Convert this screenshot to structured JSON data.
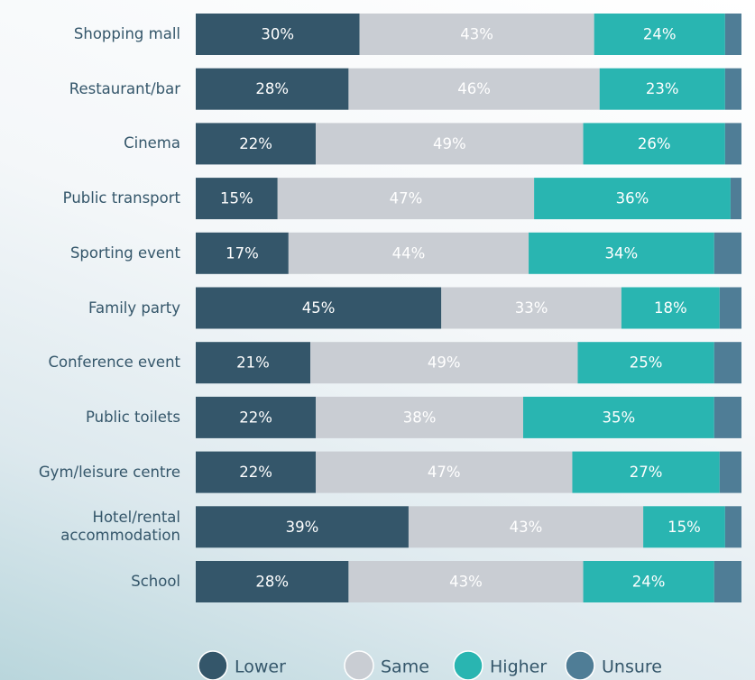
{
  "chart_data": {
    "type": "stacked-bar-horizontal",
    "categories": [
      "Shopping mall",
      "Restaurant/bar",
      "Cinema",
      "Public transport",
      "Sporting event",
      "Family party",
      "Conference event",
      "Public toilets",
      "Gym/leisure centre",
      "Hotel/rental accommodation",
      "School"
    ],
    "xlim": [
      0,
      100
    ],
    "legend": "bottom",
    "series": [
      {
        "name": "Lower",
        "color": "#34566a",
        "label_color": "#ffffff",
        "values": [
          30,
          28,
          22,
          15,
          17,
          45,
          21,
          22,
          22,
          39,
          28
        ],
        "value_labels": [
          "30%",
          "28%",
          "22%",
          "15%",
          "17%",
          "45%",
          "21%",
          "22%",
          "22%",
          "39%",
          "28%"
        ]
      },
      {
        "name": "Same",
        "color": "#c9cdd3",
        "label_color": "#ffffff",
        "values": [
          43,
          46,
          49,
          47,
          44,
          33,
          49,
          38,
          47,
          43,
          43
        ],
        "value_labels": [
          "43%",
          "46%",
          "49%",
          "47%",
          "44%",
          "33%",
          "49%",
          "38%",
          "47%",
          "43%",
          "43%"
        ]
      },
      {
        "name": "Higher",
        "color": "#29b5b1",
        "label_color": "#ffffff",
        "values": [
          24,
          23,
          26,
          36,
          34,
          18,
          25,
          35,
          27,
          15,
          24
        ],
        "value_labels": [
          "24%",
          "23%",
          "26%",
          "36%",
          "34%",
          "18%",
          "25%",
          "35%",
          "27%",
          "15%",
          "24%"
        ]
      },
      {
        "name": "Unsure",
        "color": "#4f7d96",
        "values": [
          3,
          3,
          3,
          2,
          5,
          4,
          5,
          5,
          4,
          3,
          5
        ]
      }
    ]
  }
}
